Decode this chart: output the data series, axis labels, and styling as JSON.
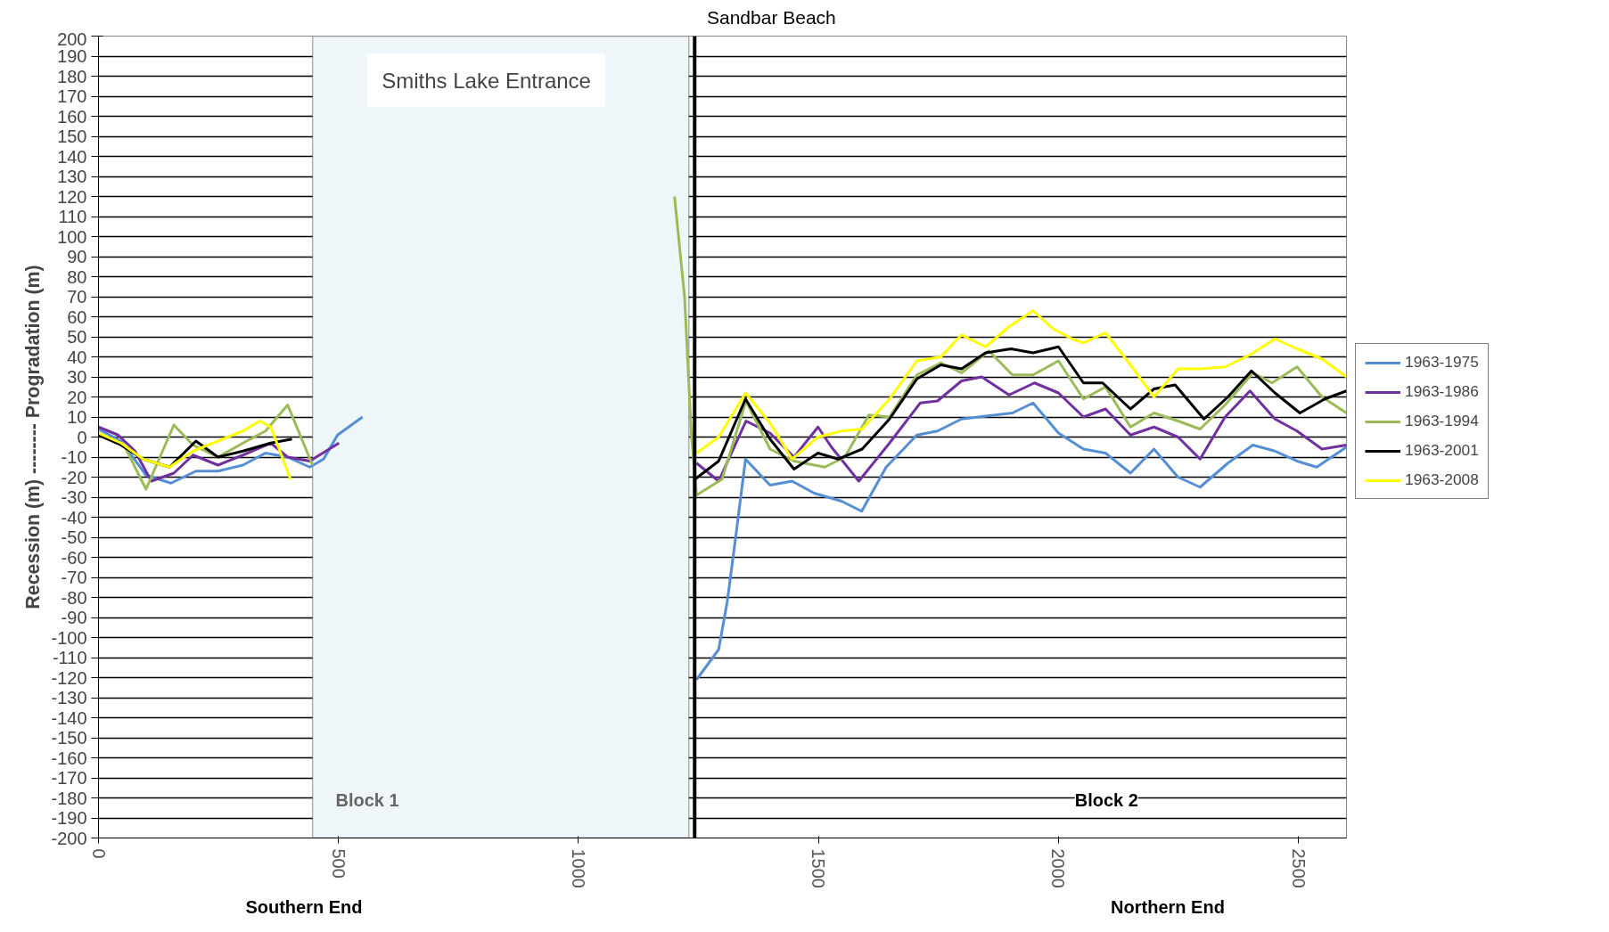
{
  "chart_data": {
    "type": "line",
    "ylabel": "Recession (m) -------- Progradation (m)",
    "xlim": [
      0,
      2600
    ],
    "ylim": [
      -200,
      200
    ],
    "xticks": [
      0,
      500,
      1000,
      1500,
      2000,
      2500
    ],
    "yticks": [
      -200,
      -190,
      -180,
      -170,
      -160,
      -150,
      -140,
      -130,
      -120,
      -110,
      -100,
      -90,
      -80,
      -70,
      -60,
      -50,
      -40,
      -30,
      -20,
      -10,
      0,
      10,
      20,
      30,
      40,
      50,
      60,
      70,
      80,
      90,
      100,
      110,
      120,
      130,
      140,
      150,
      160,
      170,
      180,
      190,
      200
    ],
    "grid": "y",
    "legend": "right",
    "marker": "none",
    "line_style": "solid",
    "bands": [
      {
        "axis": "x",
        "from": 446,
        "to": 1230,
        "label": "Smiths Lake Entrance",
        "color": "#eef6f9"
      }
    ],
    "ref_lines": [
      {
        "axis": "x",
        "value": 1242,
        "label": "Sandbar Beach",
        "color": "#000000"
      }
    ],
    "annotations": [
      "Block 1",
      "Block 2",
      "Southern End",
      "Northern End"
    ],
    "series": [
      {
        "name": "1963-1975",
        "color": "#558ed5",
        "x": [
          0,
          47,
          99,
          151,
          203,
          249,
          301,
          348,
          394,
          440,
          469,
          498,
          550,
          800,
          1246,
          1292,
          1310,
          1328,
          1348,
          1399,
          1445,
          1491,
          1548,
          1590,
          1641,
          1705,
          1748,
          1798,
          1904,
          1947,
          2000,
          2052,
          2098,
          2150,
          2199,
          2249,
          2295,
          2353,
          2405,
          2451,
          2497,
          2538,
          2600
        ],
        "values": [
          4,
          -2,
          -19,
          -23,
          -17,
          -17,
          -14,
          -8,
          -10,
          -15,
          -11,
          1,
          10,
          null,
          -121,
          -106,
          -82,
          -49,
          -11,
          -24,
          -22,
          -28,
          -32,
          -37,
          -15,
          1,
          3,
          9,
          12,
          17,
          2,
          -6,
          -8,
          -18,
          -6,
          -20,
          -25,
          -13,
          -4,
          -7,
          -12,
          -15,
          -5
        ]
      },
      {
        "name": "1963-1986",
        "color": "#7030a0",
        "x": [
          0,
          41,
          76,
          110,
          157,
          197,
          249,
          301,
          359,
          394,
          440,
          501,
          800,
          1246,
          1292,
          1349,
          1399,
          1449,
          1499,
          1527,
          1584,
          1648,
          1712,
          1748,
          1798,
          1840,
          1897,
          1950,
          2000,
          2052,
          2098,
          2150,
          2199,
          2249,
          2295,
          2347,
          2399,
          2451,
          2497,
          2549,
          2600
        ],
        "values": [
          5,
          1,
          -7,
          -22,
          -18,
          -9,
          -14,
          -9,
          -3,
          -10,
          -12,
          -3,
          null,
          -13,
          -22,
          8,
          2,
          -10,
          5,
          -5,
          -22,
          -3,
          17,
          18,
          28,
          30,
          21,
          27,
          22,
          10,
          14,
          1,
          5,
          0,
          -11,
          10,
          23,
          9,
          3,
          -6,
          -4
        ]
      },
      {
        "name": "1963-1994",
        "color": "#9bbb59",
        "x": [
          0,
          53,
          99,
          157,
          197,
          249,
          301,
          348,
          394,
          446,
          800,
          1200,
          1221,
          1235,
          1246,
          1299,
          1349,
          1399,
          1449,
          1513,
          1555,
          1605,
          1648,
          1705,
          1755,
          1798,
          1855,
          1904,
          1947,
          2000,
          2052,
          2098,
          2150,
          2199,
          2249,
          2295,
          2347,
          2405,
          2445,
          2497,
          2549,
          2600
        ],
        "values": [
          2,
          -4,
          -26,
          6,
          -4,
          -10,
          -3,
          3,
          16,
          -14,
          null,
          120,
          70,
          2,
          -29,
          -21,
          18,
          -6,
          -12,
          -15,
          -10,
          11,
          10,
          31,
          37,
          32,
          43,
          31,
          31,
          38,
          19,
          25,
          5,
          12,
          8,
          4,
          16,
          32,
          27,
          35,
          20,
          12
        ]
      },
      {
        "name": "1963-2001",
        "color": "#000000",
        "x": [
          0,
          47,
          93,
          148,
          203,
          249,
          301,
          359,
          403,
          800,
          1243,
          1292,
          1348,
          1399,
          1449,
          1499,
          1541,
          1591,
          1648,
          1705,
          1755,
          1798,
          1848,
          1901,
          1947,
          2000,
          2052,
          2092,
          2150,
          2199,
          2243,
          2303,
          2353,
          2402,
          2451,
          2503,
          2555,
          2600
        ],
        "values": [
          1,
          -4,
          -11,
          -15,
          -2,
          -10,
          -7,
          -3,
          -1,
          null,
          -21,
          -12,
          19,
          -1,
          -16,
          -8,
          -11,
          -6,
          9,
          29,
          36,
          34,
          42,
          44,
          42,
          45,
          27,
          27,
          14,
          24,
          26,
          9,
          20,
          33,
          22,
          12,
          19,
          23
        ]
      },
      {
        "name": "1963-2008",
        "color": "#ffff00",
        "x": [
          0,
          47,
          93,
          148,
          197,
          249,
          301,
          336,
          359,
          400,
          800,
          1246,
          1292,
          1348,
          1399,
          1445,
          1499,
          1548,
          1591,
          1648,
          1705,
          1755,
          1798,
          1848,
          1897,
          1947,
          1989,
          2028,
          2052,
          2098,
          2150,
          2199,
          2249,
          2295,
          2347,
          2399,
          2451,
          2497,
          2549,
          2600
        ],
        "values": [
          2,
          -3,
          -11,
          -15,
          -7,
          -2,
          3,
          8,
          5,
          -21,
          null,
          -8,
          0,
          22,
          7,
          -11,
          0,
          3,
          4,
          19,
          38,
          40,
          51,
          45,
          55,
          63,
          54,
          49,
          47,
          52,
          36,
          20,
          34,
          34,
          35,
          41,
          49,
          44,
          39,
          30
        ]
      }
    ]
  }
}
